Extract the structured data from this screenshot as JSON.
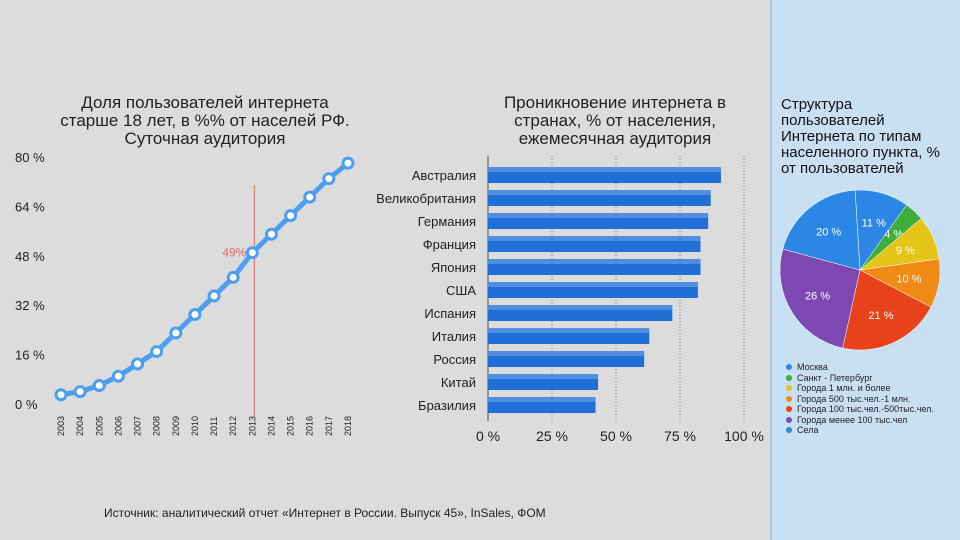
{
  "source_text": "Источник: аналитический отчет «Интернет в России. Выпуск 45», InSales, ФОМ",
  "chart_data": [
    {
      "type": "line",
      "title": "Доля пользователей интернета старше 18 лет, в %% от населей РФ. Суточная аудитория",
      "x": [
        "2003",
        "2004",
        "2005",
        "2006",
        "2007",
        "2008",
        "2009",
        "2010",
        "2011",
        "2012",
        "2013",
        "2014",
        "2015",
        "2016",
        "2017",
        "2018"
      ],
      "values": [
        3,
        4,
        6,
        9,
        13,
        17,
        23,
        29,
        35,
        41,
        49,
        55,
        61,
        67,
        73,
        78
      ],
      "yticks": [
        "0 %",
        "16 %",
        "32 %",
        "48 %",
        "64 %",
        "80 %"
      ],
      "ylim": [
        0,
        80
      ],
      "annotation": {
        "x": "2013",
        "label": "49%"
      },
      "line_color": "#4d9ef0",
      "annotation_color": "#e06a6a"
    },
    {
      "type": "bar",
      "orientation": "horizontal",
      "title": "Проникновение интернета в странах, % от населения, ежемесячная аудитория",
      "categories": [
        "Австралия",
        "Великобритания",
        "Германия",
        "Франция",
        "Япония",
        "США",
        "Испания",
        "Италия",
        "Россия",
        "Китай",
        "Бразилия"
      ],
      "values": [
        91,
        87,
        86,
        83,
        83,
        82,
        72,
        63,
        61,
        43,
        42
      ],
      "xticks": [
        "0 %",
        "25 %",
        "50 %",
        "75 %",
        "100 %"
      ],
      "xlim": [
        0,
        100
      ],
      "bar_color": "#1f6fd6"
    },
    {
      "type": "pie",
      "title": "Структура пользователей Интернета по типам населенного пункта, % от пользователей",
      "labels": [
        "Москва",
        "Санкт - Петербург",
        "Города 1 млн. и более",
        "Города 500 тыс.чел.-1 млн.",
        "Города 100 тыс.чел.-500тыс.чел.",
        "Города менее 100 тыс.чел",
        "Села"
      ],
      "values": [
        11,
        4,
        9,
        10,
        21,
        26,
        20
      ],
      "value_labels": [
        "11 %",
        "4 %",
        "9 %",
        "10 %",
        "21 %",
        "26 %",
        "20 %"
      ],
      "colors": [
        "#2b87e3",
        "#3fad3a",
        "#e3c417",
        "#ef8a17",
        "#e8421a",
        "#7d48b2",
        "#2b87e3"
      ]
    }
  ]
}
